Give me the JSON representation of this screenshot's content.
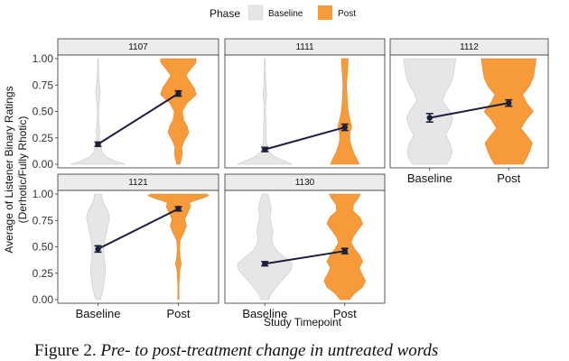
{
  "colors": {
    "baseline": "#e6e6e6",
    "post": "#f79a3a",
    "line": "#1c1f3b",
    "strip": "#ececec"
  },
  "legend": {
    "title": "Phase",
    "items": [
      "Baseline",
      "Post"
    ]
  },
  "caption": {
    "lead": "Figure 2.",
    "rest": "Pre- to post-treatment change in untreated words"
  },
  "chart_data": {
    "type": "violin",
    "ylabel": "Average of Listener Binary Ratings",
    "ylabel2": "(Derhotic/Fully Rhotic)",
    "xlabel": "Study Timepoint",
    "categories": [
      "Baseline",
      "Post"
    ],
    "ylim": [
      0,
      1
    ],
    "yticks": [
      "0.00",
      "0.25",
      "0.50",
      "0.75",
      "1.00"
    ],
    "grid": false,
    "legend_position": "top",
    "panels": [
      {
        "id": "1107",
        "means": [
          0.19,
          0.67
        ],
        "errors": [
          0.02,
          0.025
        ],
        "density": {
          "Baseline": [
            [
              0,
              0.95
            ],
            [
              0.03,
              0.6
            ],
            [
              0.07,
              0.28
            ],
            [
              0.12,
              0.14
            ],
            [
              0.18,
              0.08
            ],
            [
              0.25,
              0.04
            ],
            [
              0.32,
              0.06
            ],
            [
              0.4,
              0.03
            ],
            [
              0.5,
              0.02
            ],
            [
              0.6,
              0.05
            ],
            [
              0.68,
              0.08
            ],
            [
              0.75,
              0.05
            ],
            [
              0.85,
              0.02
            ],
            [
              1.0,
              0.01
            ]
          ],
          "Post": [
            [
              0,
              0.06
            ],
            [
              0.05,
              0.1
            ],
            [
              0.1,
              0.14
            ],
            [
              0.16,
              0.12
            ],
            [
              0.22,
              0.2
            ],
            [
              0.3,
              0.36
            ],
            [
              0.36,
              0.3
            ],
            [
              0.42,
              0.18
            ],
            [
              0.5,
              0.14
            ],
            [
              0.58,
              0.3
            ],
            [
              0.66,
              0.62
            ],
            [
              0.72,
              0.55
            ],
            [
              0.78,
              0.4
            ],
            [
              0.84,
              0.26
            ],
            [
              0.9,
              0.42
            ],
            [
              0.96,
              0.6
            ],
            [
              1.0,
              0.62
            ]
          ]
        }
      },
      {
        "id": "1111",
        "means": [
          0.14,
          0.35
        ],
        "errors": [
          0.02,
          0.03
        ],
        "density": {
          "Baseline": [
            [
              0,
              0.95
            ],
            [
              0.03,
              0.7
            ],
            [
              0.07,
              0.35
            ],
            [
              0.12,
              0.14
            ],
            [
              0.18,
              0.07
            ],
            [
              0.25,
              0.04
            ],
            [
              0.35,
              0.05
            ],
            [
              0.45,
              0.03
            ],
            [
              0.55,
              0.02
            ],
            [
              0.65,
              0.06
            ],
            [
              0.75,
              0.04
            ],
            [
              0.88,
              0.02
            ],
            [
              1.0,
              0.01
            ]
          ],
          "Post": [
            [
              0,
              0.5
            ],
            [
              0.05,
              0.42
            ],
            [
              0.1,
              0.32
            ],
            [
              0.16,
              0.24
            ],
            [
              0.22,
              0.18
            ],
            [
              0.3,
              0.18
            ],
            [
              0.36,
              0.24
            ],
            [
              0.42,
              0.18
            ],
            [
              0.5,
              0.12
            ],
            [
              0.58,
              0.09
            ],
            [
              0.66,
              0.08
            ],
            [
              0.74,
              0.06
            ],
            [
              0.82,
              0.08
            ],
            [
              0.9,
              0.1
            ],
            [
              1.0,
              0.12
            ]
          ]
        }
      },
      {
        "id": "1112",
        "means": [
          0.44,
          0.58
        ],
        "errors": [
          0.04,
          0.03
        ],
        "density": {
          "Baseline": [
            [
              0,
              0.6
            ],
            [
              0.06,
              0.72
            ],
            [
              0.12,
              0.78
            ],
            [
              0.2,
              0.7
            ],
            [
              0.28,
              0.55
            ],
            [
              0.36,
              0.72
            ],
            [
              0.44,
              0.8
            ],
            [
              0.52,
              0.65
            ],
            [
              0.6,
              0.45
            ],
            [
              0.68,
              0.55
            ],
            [
              0.76,
              0.72
            ],
            [
              0.84,
              0.82
            ],
            [
              0.92,
              0.86
            ],
            [
              1.0,
              0.9
            ]
          ],
          "Post": [
            [
              0,
              0.5
            ],
            [
              0.06,
              0.62
            ],
            [
              0.12,
              0.72
            ],
            [
              0.2,
              0.82
            ],
            [
              0.28,
              0.6
            ],
            [
              0.34,
              0.42
            ],
            [
              0.42,
              0.6
            ],
            [
              0.5,
              0.85
            ],
            [
              0.58,
              0.62
            ],
            [
              0.66,
              0.48
            ],
            [
              0.74,
              0.72
            ],
            [
              0.82,
              0.85
            ],
            [
              0.9,
              0.9
            ],
            [
              1.0,
              0.95
            ]
          ]
        }
      },
      {
        "id": "1121",
        "means": [
          0.48,
          0.86
        ],
        "errors": [
          0.03,
          0.02
        ],
        "density": {
          "Baseline": [
            [
              0,
              0.08
            ],
            [
              0.06,
              0.14
            ],
            [
              0.14,
              0.2
            ],
            [
              0.22,
              0.24
            ],
            [
              0.3,
              0.26
            ],
            [
              0.38,
              0.22
            ],
            [
              0.46,
              0.2
            ],
            [
              0.54,
              0.22
            ],
            [
              0.62,
              0.28
            ],
            [
              0.7,
              0.34
            ],
            [
              0.78,
              0.4
            ],
            [
              0.84,
              0.34
            ],
            [
              0.9,
              0.22
            ],
            [
              0.96,
              0.14
            ],
            [
              1.0,
              0.12
            ]
          ],
          "Post": [
            [
              0,
              0.02
            ],
            [
              0.06,
              0.02
            ],
            [
              0.12,
              0.02
            ],
            [
              0.2,
              0.03
            ],
            [
              0.28,
              0.05
            ],
            [
              0.34,
              0.1
            ],
            [
              0.4,
              0.06
            ],
            [
              0.48,
              0.04
            ],
            [
              0.56,
              0.06
            ],
            [
              0.64,
              0.2
            ],
            [
              0.7,
              0.28
            ],
            [
              0.76,
              0.22
            ],
            [
              0.82,
              0.32
            ],
            [
              0.88,
              0.42
            ],
            [
              0.92,
              0.38
            ],
            [
              0.96,
              0.82
            ],
            [
              0.985,
              1.05
            ],
            [
              1.0,
              0.98
            ]
          ]
        }
      },
      {
        "id": "1130",
        "means": [
          0.34,
          0.46
        ],
        "errors": [
          0.02,
          0.025
        ],
        "density": {
          "Baseline": [
            [
              0,
              0.14
            ],
            [
              0.04,
              0.18
            ],
            [
              0.1,
              0.34
            ],
            [
              0.16,
              0.52
            ],
            [
              0.22,
              0.72
            ],
            [
              0.28,
              0.9
            ],
            [
              0.34,
              0.95
            ],
            [
              0.4,
              0.7
            ],
            [
              0.46,
              0.42
            ],
            [
              0.52,
              0.28
            ],
            [
              0.58,
              0.24
            ],
            [
              0.64,
              0.28
            ],
            [
              0.7,
              0.24
            ],
            [
              0.78,
              0.18
            ],
            [
              0.86,
              0.22
            ],
            [
              0.92,
              0.18
            ],
            [
              1.0,
              0.1
            ]
          ],
          "Post": [
            [
              0,
              0.16
            ],
            [
              0.06,
              0.34
            ],
            [
              0.12,
              0.62
            ],
            [
              0.18,
              0.72
            ],
            [
              0.24,
              0.6
            ],
            [
              0.3,
              0.5
            ],
            [
              0.36,
              0.62
            ],
            [
              0.42,
              0.52
            ],
            [
              0.48,
              0.34
            ],
            [
              0.54,
              0.22
            ],
            [
              0.6,
              0.3
            ],
            [
              0.66,
              0.46
            ],
            [
              0.72,
              0.62
            ],
            [
              0.78,
              0.52
            ],
            [
              0.84,
              0.28
            ],
            [
              0.9,
              0.3
            ],
            [
              0.96,
              0.46
            ],
            [
              1.0,
              0.54
            ]
          ]
        }
      }
    ]
  }
}
